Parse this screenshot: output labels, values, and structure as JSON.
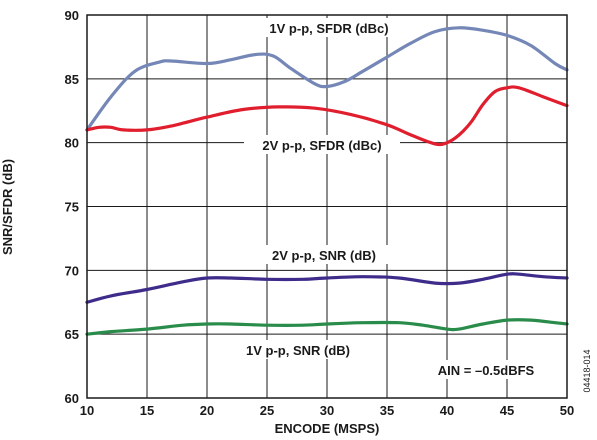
{
  "chart_data": {
    "type": "line",
    "xlabel": "ENCODE (MSPS)",
    "ylabel": "SNR/SFDR (dB)",
    "xlim": [
      10,
      50
    ],
    "ylim": [
      60,
      90
    ],
    "xticks": [
      10,
      15,
      20,
      25,
      30,
      35,
      40,
      45,
      50
    ],
    "yticks": [
      60,
      65,
      70,
      75,
      80,
      85,
      90
    ],
    "grid": true,
    "figure_id": "04418-014",
    "condition_label": "AIN = –0.5dBFS",
    "series": [
      {
        "name": "1V p-p, SFDR (dBc)",
        "color": "#7487b6",
        "points": [
          [
            10,
            81.0
          ],
          [
            12,
            83.6
          ],
          [
            14,
            85.6
          ],
          [
            16,
            86.3
          ],
          [
            17,
            86.4
          ],
          [
            20,
            86.2
          ],
          [
            22,
            86.5
          ],
          [
            24,
            86.9
          ],
          [
            25.5,
            86.8
          ],
          [
            27,
            85.8
          ],
          [
            29,
            84.6
          ],
          [
            30,
            84.4
          ],
          [
            31.5,
            84.8
          ],
          [
            33,
            85.6
          ],
          [
            35,
            86.7
          ],
          [
            37,
            87.8
          ],
          [
            39,
            88.7
          ],
          [
            41,
            89.0
          ],
          [
            43,
            88.8
          ],
          [
            45,
            88.4
          ],
          [
            47,
            87.6
          ],
          [
            49,
            86.2
          ],
          [
            50,
            85.7
          ]
        ]
      },
      {
        "name": "2V p-p, SFDR (dBc)",
        "color": "#e01e2e",
        "points": [
          [
            10,
            81.0
          ],
          [
            11,
            81.2
          ],
          [
            12,
            81.2
          ],
          [
            13,
            81.0
          ],
          [
            15,
            81.0
          ],
          [
            17,
            81.3
          ],
          [
            20,
            82.0
          ],
          [
            23,
            82.6
          ],
          [
            26,
            82.8
          ],
          [
            29,
            82.7
          ],
          [
            32,
            82.2
          ],
          [
            35,
            81.4
          ],
          [
            37,
            80.6
          ],
          [
            39,
            79.9
          ],
          [
            40,
            80.0
          ],
          [
            41,
            80.6
          ],
          [
            42,
            81.6
          ],
          [
            43,
            83.0
          ],
          [
            44,
            84.0
          ],
          [
            45,
            84.3
          ],
          [
            46,
            84.3
          ],
          [
            48,
            83.6
          ],
          [
            50,
            82.9
          ]
        ]
      },
      {
        "name": "2V p-p, SNR (dB)",
        "color": "#3e2b8a",
        "points": [
          [
            10,
            67.5
          ],
          [
            12,
            68.0
          ],
          [
            15,
            68.5
          ],
          [
            18,
            69.1
          ],
          [
            20,
            69.4
          ],
          [
            22,
            69.4
          ],
          [
            25,
            69.3
          ],
          [
            28,
            69.3
          ],
          [
            30,
            69.4
          ],
          [
            33,
            69.5
          ],
          [
            36,
            69.4
          ],
          [
            39,
            69.0
          ],
          [
            41,
            69.0
          ],
          [
            43,
            69.3
          ],
          [
            45,
            69.7
          ],
          [
            46,
            69.7
          ],
          [
            48,
            69.5
          ],
          [
            50,
            69.4
          ]
        ]
      },
      {
        "name": "1V p-p, SNR (dB)",
        "color": "#2a8c4a",
        "points": [
          [
            10,
            65.0
          ],
          [
            12,
            65.2
          ],
          [
            15,
            65.4
          ],
          [
            18,
            65.7
          ],
          [
            20,
            65.8
          ],
          [
            22,
            65.8
          ],
          [
            25,
            65.7
          ],
          [
            28,
            65.7
          ],
          [
            30,
            65.8
          ],
          [
            33,
            65.9
          ],
          [
            36,
            65.9
          ],
          [
            38,
            65.7
          ],
          [
            40,
            65.4
          ],
          [
            41,
            65.4
          ],
          [
            43,
            65.8
          ],
          [
            45,
            66.1
          ],
          [
            47,
            66.1
          ],
          [
            49,
            65.9
          ],
          [
            50,
            65.8
          ]
        ]
      }
    ]
  }
}
